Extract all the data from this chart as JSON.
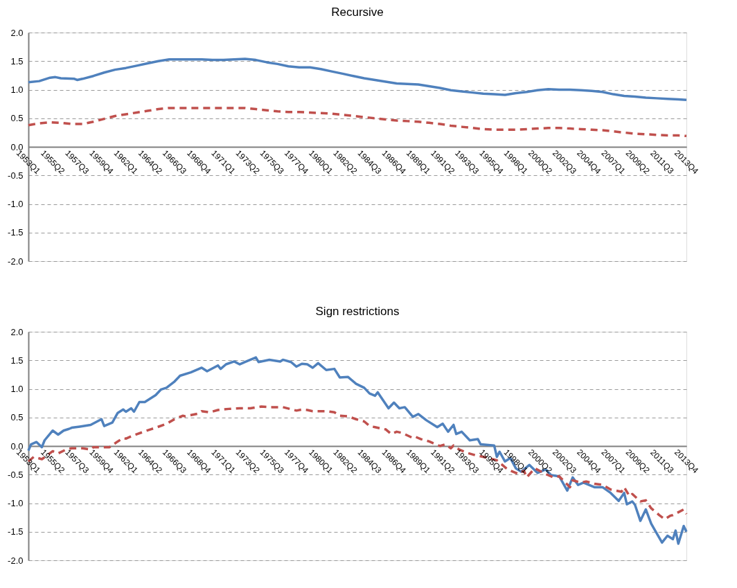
{
  "chart_data": [
    {
      "type": "line",
      "title": "Recursive",
      "xlim": [
        "1953-01",
        "2013-10"
      ],
      "ylim": [
        -2.0,
        2.0
      ],
      "yticks": [
        {
          "value": -2,
          "label": "-2.0"
        },
        {
          "value": -1.5,
          "label": "-1.5"
        },
        {
          "value": -1,
          "label": "-1.0"
        },
        {
          "value": -0.5,
          "label": "-0.5"
        },
        {
          "value": 0,
          "label": "0.0"
        },
        {
          "value": 0.5,
          "label": "0.5"
        },
        {
          "value": 1,
          "label": "1.0"
        },
        {
          "value": 1.5,
          "label": "1.5"
        },
        {
          "value": 2,
          "label": "2.0"
        }
      ],
      "xticks": [
        {
          "value": "1953-01",
          "label": "1953Q1"
        },
        {
          "value": "1955-04",
          "label": "1955Q2"
        },
        {
          "value": "1957-07",
          "label": "1957Q3"
        },
        {
          "value": "1959-10",
          "label": "1959Q4"
        },
        {
          "value": "1962-01",
          "label": "1962Q1"
        },
        {
          "value": "1964-04",
          "label": "1964Q2"
        },
        {
          "value": "1966-07",
          "label": "1966Q3"
        },
        {
          "value": "1968-10",
          "label": "1968Q4"
        },
        {
          "value": "1971-01",
          "label": "1971Q1"
        },
        {
          "value": "1973-04",
          "label": "1973Q2"
        },
        {
          "value": "1975-07",
          "label": "1975Q3"
        },
        {
          "value": "1977-10",
          "label": "1977Q4"
        },
        {
          "value": "1980-01",
          "label": "1980Q1"
        },
        {
          "value": "1982-04",
          "label": "1982Q2"
        },
        {
          "value": "1984-07",
          "label": "1984Q3"
        },
        {
          "value": "1986-10",
          "label": "1986Q4"
        },
        {
          "value": "1989-01",
          "label": "1989Q1"
        },
        {
          "value": "1991-04",
          "label": "1991Q2"
        },
        {
          "value": "1993-07",
          "label": "1993Q3"
        },
        {
          "value": "1995-10",
          "label": "1995Q4"
        },
        {
          "value": "1998-01",
          "label": "1998Q1"
        },
        {
          "value": "2000-04",
          "label": "2000Q2"
        },
        {
          "value": "2002-07",
          "label": "2002Q3"
        },
        {
          "value": "2004-10",
          "label": "2004Q4"
        },
        {
          "value": "2007-01",
          "label": "2007Q1"
        },
        {
          "value": "2009-04",
          "label": "2009Q2"
        },
        {
          "value": "2011-07",
          "label": "2011Q3"
        },
        {
          "value": "2013-10",
          "label": "2013Q4"
        }
      ],
      "grid": "y",
      "series": [
        {
          "color": "#4f81bd",
          "line_style": "solid",
          "x": [
            "1953-01",
            "1954-01",
            "1955-01",
            "1955-07",
            "1956-01",
            "1957-04",
            "1957-07",
            "1958-01",
            "1959-01",
            "1960-01",
            "1961-01",
            "1962-01",
            "1963-01",
            "1964-01",
            "1965-01",
            "1966-01",
            "1967-01",
            "1968-01",
            "1969-01",
            "1970-01",
            "1971-01",
            "1972-01",
            "1973-01",
            "1974-01",
            "1975-01",
            "1976-01",
            "1977-01",
            "1978-01",
            "1979-01",
            "1980-01",
            "1981-01",
            "1982-01",
            "1983-01",
            "1984-01",
            "1985-01",
            "1986-01",
            "1987-01",
            "1988-01",
            "1989-01",
            "1990-01",
            "1991-01",
            "1992-01",
            "1993-01",
            "1994-01",
            "1995-01",
            "1996-01",
            "1997-01",
            "1998-01",
            "1999-01",
            "2000-01",
            "2001-01",
            "2002-01",
            "2003-01",
            "2004-01",
            "2005-01",
            "2006-01",
            "2007-01",
            "2008-01",
            "2009-01",
            "2010-01",
            "2011-01",
            "2012-01",
            "2013-01",
            "2013-10"
          ],
          "values": [
            1.13,
            1.15,
            1.21,
            1.22,
            1.2,
            1.19,
            1.17,
            1.19,
            1.24,
            1.3,
            1.35,
            1.38,
            1.42,
            1.46,
            1.5,
            1.53,
            1.53,
            1.53,
            1.53,
            1.52,
            1.52,
            1.53,
            1.54,
            1.52,
            1.48,
            1.45,
            1.41,
            1.39,
            1.39,
            1.36,
            1.32,
            1.28,
            1.24,
            1.2,
            1.17,
            1.14,
            1.11,
            1.1,
            1.09,
            1.06,
            1.03,
            0.99,
            0.97,
            0.95,
            0.93,
            0.92,
            0.91,
            0.94,
            0.96,
            0.99,
            1.01,
            1.0,
            1.0,
            0.99,
            0.98,
            0.96,
            0.92,
            0.89,
            0.88,
            0.86,
            0.85,
            0.84,
            0.83,
            0.82
          ]
        },
        {
          "color": "#c0504d",
          "line_style": "dashed",
          "x": [
            "1953-01",
            "1954-01",
            "1955-01",
            "1956-01",
            "1957-01",
            "1958-01",
            "1959-01",
            "1960-01",
            "1961-01",
            "1962-01",
            "1963-01",
            "1964-01",
            "1965-01",
            "1966-01",
            "1967-01",
            "1968-01",
            "1969-01",
            "1970-01",
            "1971-01",
            "1972-01",
            "1973-01",
            "1974-01",
            "1975-01",
            "1976-01",
            "1977-01",
            "1978-01",
            "1979-01",
            "1980-01",
            "1981-01",
            "1982-01",
            "1983-01",
            "1984-01",
            "1985-01",
            "1986-01",
            "1987-01",
            "1988-01",
            "1989-01",
            "1990-01",
            "1991-01",
            "1992-01",
            "1993-01",
            "1994-01",
            "1995-01",
            "1996-01",
            "1997-01",
            "1998-01",
            "1999-01",
            "2000-01",
            "2001-01",
            "2002-01",
            "2003-01",
            "2004-01",
            "2005-01",
            "2006-01",
            "2007-01",
            "2008-01",
            "2009-01",
            "2010-01",
            "2011-01",
            "2012-01",
            "2013-01",
            "2013-10"
          ],
          "values": [
            0.38,
            0.41,
            0.43,
            0.42,
            0.4,
            0.4,
            0.44,
            0.49,
            0.54,
            0.57,
            0.6,
            0.63,
            0.66,
            0.68,
            0.68,
            0.68,
            0.68,
            0.68,
            0.68,
            0.68,
            0.68,
            0.66,
            0.64,
            0.62,
            0.61,
            0.61,
            0.6,
            0.59,
            0.58,
            0.56,
            0.54,
            0.52,
            0.5,
            0.48,
            0.46,
            0.45,
            0.44,
            0.42,
            0.4,
            0.37,
            0.35,
            0.33,
            0.31,
            0.3,
            0.3,
            0.3,
            0.31,
            0.32,
            0.33,
            0.33,
            0.32,
            0.31,
            0.3,
            0.29,
            0.27,
            0.25,
            0.23,
            0.22,
            0.21,
            0.2,
            0.2,
            0.19
          ]
        }
      ]
    },
    {
      "type": "line",
      "title": "Sign restrictions",
      "xlim": [
        "1953-01",
        "2013-10"
      ],
      "ylim": [
        -2.0,
        2.0
      ],
      "yticks": [
        {
          "value": -2,
          "label": "-2.0"
        },
        {
          "value": -1.5,
          "label": "-1.5"
        },
        {
          "value": -1,
          "label": "-1.0"
        },
        {
          "value": -0.5,
          "label": "-0.5"
        },
        {
          "value": 0,
          "label": "0.0"
        },
        {
          "value": 0.5,
          "label": "0.5"
        },
        {
          "value": 1,
          "label": "1.0"
        },
        {
          "value": 1.5,
          "label": "1.5"
        },
        {
          "value": 2,
          "label": "2.0"
        }
      ],
      "xticks": [
        {
          "value": "1953-01",
          "label": "1953Q1"
        },
        {
          "value": "1955-04",
          "label": "1955Q2"
        },
        {
          "value": "1957-07",
          "label": "1957Q3"
        },
        {
          "value": "1959-10",
          "label": "1959Q4"
        },
        {
          "value": "1962-01",
          "label": "1962Q1"
        },
        {
          "value": "1964-04",
          "label": "1964Q2"
        },
        {
          "value": "1966-07",
          "label": "1966Q3"
        },
        {
          "value": "1968-10",
          "label": "1968Q4"
        },
        {
          "value": "1971-01",
          "label": "1971Q1"
        },
        {
          "value": "1973-04",
          "label": "1973Q2"
        },
        {
          "value": "1975-07",
          "label": "1975Q3"
        },
        {
          "value": "1977-10",
          "label": "1977Q4"
        },
        {
          "value": "1980-01",
          "label": "1980Q1"
        },
        {
          "value": "1982-04",
          "label": "1982Q2"
        },
        {
          "value": "1984-07",
          "label": "1984Q3"
        },
        {
          "value": "1986-10",
          "label": "1986Q4"
        },
        {
          "value": "1989-01",
          "label": "1989Q1"
        },
        {
          "value": "1991-04",
          "label": "1991Q2"
        },
        {
          "value": "1993-07",
          "label": "1993Q3"
        },
        {
          "value": "1995-10",
          "label": "1995Q4"
        },
        {
          "value": "1998-01",
          "label": "1998Q1"
        },
        {
          "value": "2000-04",
          "label": "2000Q2"
        },
        {
          "value": "2002-07",
          "label": "2002Q3"
        },
        {
          "value": "2004-10",
          "label": "2004Q4"
        },
        {
          "value": "2007-01",
          "label": "2007Q1"
        },
        {
          "value": "2009-04",
          "label": "2009Q2"
        },
        {
          "value": "2011-07",
          "label": "2011Q3"
        },
        {
          "value": "2013-10",
          "label": "2013Q4"
        }
      ],
      "grid": "y",
      "series": [
        {
          "color": "#4f81bd",
          "line_style": "solid",
          "x": [
            "1953-01",
            "1953-04",
            "1953-10",
            "1954-04",
            "1954-07",
            "1955-04",
            "1955-10",
            "1956-04",
            "1956-10",
            "1957-01",
            "1957-10",
            "1958-10",
            "1959-10",
            "1960-01",
            "1960-10",
            "1961-04",
            "1961-10",
            "1962-01",
            "1962-07",
            "1962-10",
            "1963-04",
            "1963-10",
            "1964-10",
            "1965-04",
            "1965-10",
            "1966-07",
            "1967-01",
            "1968-01",
            "1969-01",
            "1969-07",
            "1970-07",
            "1970-10",
            "1971-04",
            "1972-01",
            "1972-07",
            "1973-01",
            "1974-01",
            "1974-04",
            "1975-04",
            "1976-04",
            "1976-07",
            "1977-04",
            "1977-10",
            "1978-04",
            "1978-10",
            "1979-04",
            "1979-10",
            "1980-07",
            "1981-04",
            "1981-10",
            "1982-07",
            "1983-04",
            "1984-01",
            "1984-07",
            "1985-01",
            "1985-04",
            "1986-04",
            "1986-10",
            "1987-04",
            "1987-10",
            "1988-07",
            "1989-01",
            "1989-10",
            "1990-10",
            "1991-04",
            "1991-10",
            "1992-04",
            "1992-07",
            "1993-01",
            "1993-10",
            "1994-07",
            "1994-10",
            "1996-01",
            "1996-04",
            "1996-07",
            "1997-01",
            "1997-07",
            "1998-01",
            "1998-07",
            "1999-04",
            "2000-01",
            "2000-10",
            "2001-04",
            "2002-01",
            "2002-10",
            "2003-04",
            "2003-10",
            "2004-04",
            "2005-04",
            "2006-01",
            "2006-10",
            "2007-07",
            "2008-01",
            "2008-04",
            "2008-10",
            "2009-01",
            "2009-07",
            "2010-01",
            "2010-07",
            "2011-07",
            "2012-01",
            "2012-07",
            "2012-10",
            "2013-01",
            "2013-07",
            "2013-10"
          ],
          "values": [
            -0.08,
            0.03,
            0.07,
            -0.02,
            0.1,
            0.27,
            0.2,
            0.27,
            0.3,
            0.32,
            0.34,
            0.37,
            0.47,
            0.35,
            0.41,
            0.58,
            0.64,
            0.6,
            0.66,
            0.6,
            0.77,
            0.77,
            0.89,
            0.99,
            1.02,
            1.13,
            1.23,
            1.29,
            1.37,
            1.31,
            1.41,
            1.35,
            1.43,
            1.48,
            1.43,
            1.47,
            1.55,
            1.47,
            1.51,
            1.48,
            1.51,
            1.47,
            1.39,
            1.44,
            1.43,
            1.37,
            1.45,
            1.33,
            1.35,
            1.2,
            1.21,
            1.09,
            1.02,
            0.92,
            0.88,
            0.94,
            0.66,
            0.76,
            0.66,
            0.68,
            0.51,
            0.56,
            0.45,
            0.33,
            0.39,
            0.25,
            0.37,
            0.21,
            0.25,
            0.1,
            0.12,
            0.03,
            0.01,
            -0.19,
            -0.1,
            -0.27,
            -0.21,
            -0.39,
            -0.45,
            -0.33,
            -0.47,
            -0.41,
            -0.51,
            -0.53,
            -0.78,
            -0.55,
            -0.68,
            -0.64,
            -0.72,
            -0.72,
            -0.82,
            -0.96,
            -0.82,
            -1.02,
            -0.97,
            -1.03,
            -1.31,
            -1.11,
            -1.36,
            -1.69,
            -1.57,
            -1.63,
            -1.48,
            -1.71,
            -1.4,
            -1.5
          ]
        },
        {
          "color": "#c0504d",
          "line_style": "dashed",
          "x": [
            "1953-01",
            "1953-07",
            "1954-04",
            "1955-04",
            "1955-10",
            "1956-07",
            "1957-01",
            "1958-01",
            "1958-10",
            "1959-01",
            "1960-07",
            "1961-04",
            "1961-10",
            "1962-01",
            "1962-10",
            "1963-07",
            "1964-04",
            "1964-10",
            "1965-10",
            "1966-07",
            "1967-04",
            "1967-07",
            "1968-10",
            "1969-01",
            "1969-10",
            "1970-07",
            "1971-07",
            "1972-07",
            "1973-07",
            "1974-07",
            "1975-07",
            "1976-07",
            "1977-10",
            "1978-04",
            "1978-10",
            "1979-04",
            "1980-07",
            "1981-04",
            "1981-10",
            "1982-07",
            "1983-04",
            "1984-01",
            "1984-07",
            "1985-01",
            "1986-01",
            "1986-07",
            "1987-01",
            "1987-07",
            "1988-07",
            "1988-10",
            "1989-04",
            "1990-01",
            "1991-01",
            "1991-07",
            "1992-01",
            "1992-04",
            "1992-10",
            "1993-07",
            "1994-04",
            "1995-04",
            "1996-04",
            "1997-04",
            "1998-04",
            "1998-10",
            "1999-01",
            "1999-10",
            "2000-10",
            "2001-07",
            "2002-01",
            "2003-01",
            "2003-04",
            "2004-01",
            "2004-07",
            "2005-04",
            "2006-01",
            "2006-10",
            "2007-10",
            "2008-01",
            "2008-07",
            "2008-10",
            "2009-07",
            "2010-01",
            "2010-07",
            "2011-04",
            "2011-10",
            "2012-04",
            "2012-07",
            "2013-07",
            "2013-10"
          ],
          "values": [
            -0.27,
            -0.19,
            -0.23,
            -0.09,
            -0.13,
            -0.06,
            -0.04,
            -0.04,
            -0.06,
            -0.02,
            -0.02,
            0.08,
            0.14,
            0.13,
            0.19,
            0.24,
            0.29,
            0.32,
            0.39,
            0.47,
            0.53,
            0.52,
            0.57,
            0.61,
            0.59,
            0.63,
            0.65,
            0.66,
            0.66,
            0.69,
            0.68,
            0.68,
            0.62,
            0.64,
            0.63,
            0.61,
            0.61,
            0.59,
            0.53,
            0.52,
            0.47,
            0.43,
            0.35,
            0.33,
            0.29,
            0.21,
            0.25,
            0.23,
            0.14,
            0.16,
            0.12,
            0.08,
            0.0,
            0.03,
            -0.04,
            0.01,
            -0.06,
            -0.12,
            -0.16,
            -0.2,
            -0.25,
            -0.41,
            -0.49,
            -0.43,
            -0.55,
            -0.39,
            -0.49,
            -0.55,
            -0.53,
            -0.72,
            -0.6,
            -0.64,
            -0.62,
            -0.66,
            -0.68,
            -0.76,
            -0.8,
            -0.72,
            -0.88,
            -0.84,
            -0.97,
            -0.95,
            -1.09,
            -1.21,
            -1.28,
            -1.22,
            -1.21,
            -1.11,
            -1.19
          ]
        }
      ]
    }
  ]
}
